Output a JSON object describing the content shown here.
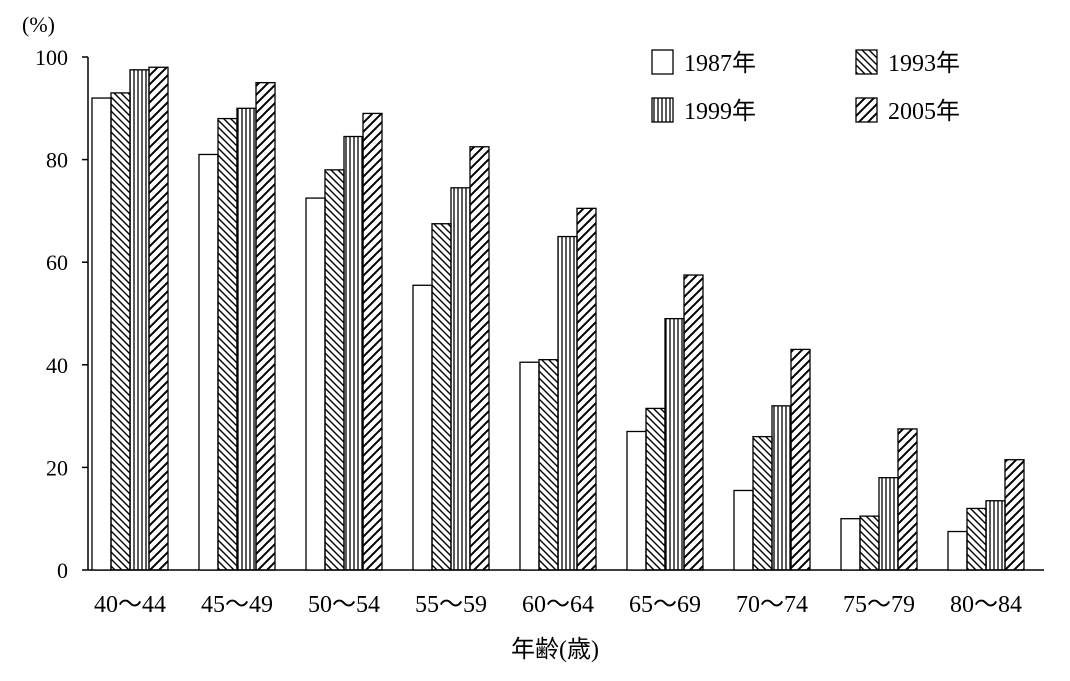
{
  "chart_data": {
    "type": "bar",
    "title": "",
    "xlabel": "年齢(歳)",
    "ylabel": "(%)",
    "ylim": [
      0,
      100
    ],
    "yticks": [
      "0",
      "20",
      "40",
      "60",
      "80",
      "100"
    ],
    "legend_placement": "top-right",
    "grid": false,
    "categories": [
      "40〜44",
      "45〜49",
      "50〜54",
      "55〜59",
      "60〜64",
      "65〜69",
      "70〜74",
      "75〜79",
      "80〜84"
    ],
    "series": [
      {
        "name": "1987年",
        "pattern": "blank",
        "values": [
          92,
          81,
          72.5,
          55.5,
          40.5,
          27,
          15.5,
          10,
          7.5
        ]
      },
      {
        "name": "1993年",
        "pattern": "backslash-hatch",
        "values": [
          93,
          88,
          78,
          67.5,
          41,
          31.5,
          26,
          10.5,
          12
        ]
      },
      {
        "name": "1999年",
        "pattern": "vertical-lines",
        "values": [
          97.5,
          90,
          84.5,
          74.5,
          65,
          49,
          32,
          18,
          13.5
        ]
      },
      {
        "name": "2005年",
        "pattern": "slash-hatch",
        "values": [
          98,
          95,
          89,
          82.5,
          70.5,
          57.5,
          43,
          27.5,
          21.5
        ]
      }
    ],
    "colors": {
      "stroke": "#000000",
      "fill": "#ffffff"
    }
  }
}
